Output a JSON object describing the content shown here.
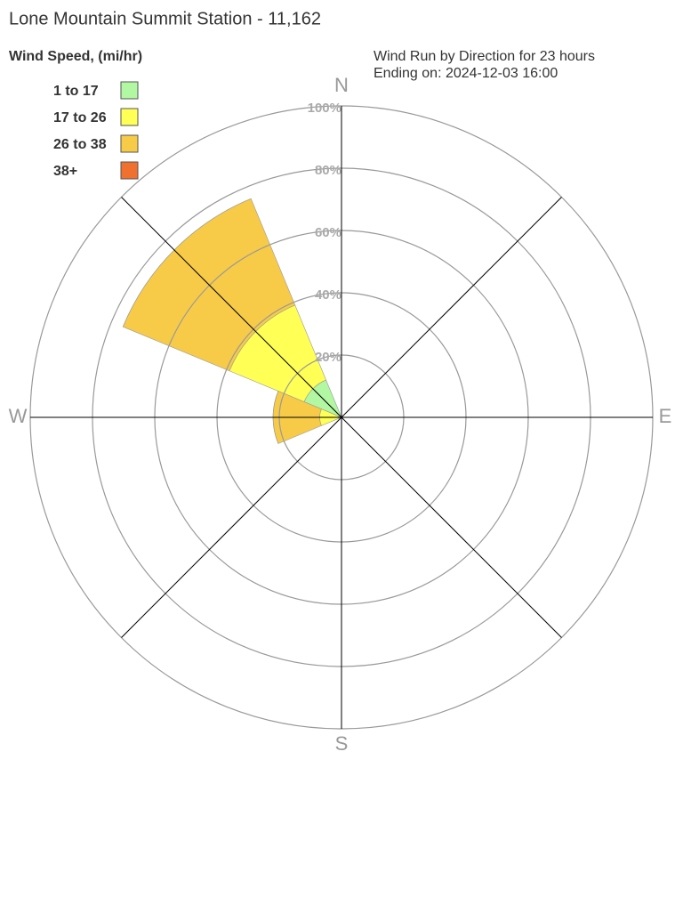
{
  "chart_data": {
    "type": "windrose",
    "title": "Lone Mountain Summit Station - 11,162",
    "legend_title": "Wind Speed, (mi/hr)",
    "subtitle": [
      "Wind Run by Direction for 23 hours",
      "Ending on: 2024-12-03 16:00"
    ],
    "compass_labels": [
      "N",
      "E",
      "S",
      "W"
    ],
    "x": [
      0,
      45,
      90,
      135,
      180,
      225,
      270,
      315
    ],
    "series": [
      {
        "name": "1 to 17",
        "color": "#b2f7a2",
        "values": [
          0,
          0,
          0,
          0,
          0,
          0,
          1,
          13
        ]
      },
      {
        "name": "17 to 26",
        "color": "#ffff55",
        "values": [
          0,
          0,
          0,
          0,
          0,
          0,
          6,
          26
        ]
      },
      {
        "name": "26 to 38",
        "color": "#f7cb48",
        "values": [
          0,
          0,
          0,
          0,
          0,
          0,
          15,
          37
        ]
      },
      {
        "name": "38+",
        "color": "#f07030",
        "values": [
          0,
          0,
          0,
          0,
          0,
          0,
          0,
          0
        ]
      }
    ],
    "rlim": [
      0,
      100
    ],
    "rticks": [
      {
        "value": 20,
        "label": "20%"
      },
      {
        "value": 40,
        "label": "40%"
      },
      {
        "value": 60,
        "label": "60%"
      },
      {
        "value": 80,
        "label": "80%"
      },
      {
        "value": 100,
        "label": "100%"
      }
    ],
    "grid": true
  }
}
